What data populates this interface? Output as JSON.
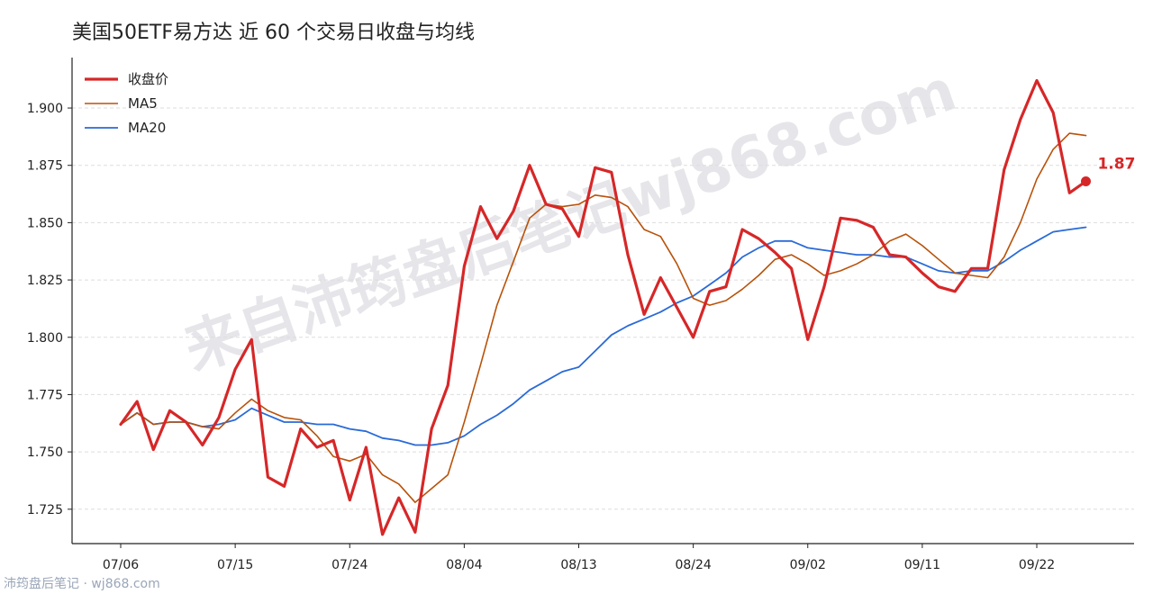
{
  "title": "美国50ETF易方达 近 60 个交易日收盘与均线",
  "footer": "沛筠盘后笔记 · wj868.com",
  "watermark": "来自沛筠盘后笔记wj868.com",
  "colors": {
    "close": "#d62728",
    "ma5": "#b8520a",
    "ma20": "#2a6ad8",
    "grid": "#dddddd",
    "axis": "#222222"
  },
  "chart_data": {
    "type": "line",
    "x_tick_labels": [
      "07/06",
      "07/15",
      "07/24",
      "08/04",
      "08/13",
      "08/24",
      "09/02",
      "09/11",
      "09/22"
    ],
    "x_tick_indices": [
      0,
      7,
      14,
      21,
      28,
      35,
      42,
      49,
      56
    ],
    "ylim": [
      1.71,
      1.922
    ],
    "y_ticks": [
      1.725,
      1.75,
      1.775,
      1.8,
      1.825,
      1.85,
      1.875,
      1.9
    ],
    "y_tick_labels": [
      "1.725",
      "1.750",
      "1.775",
      "1.800",
      "1.825",
      "1.850",
      "1.875",
      "1.900"
    ],
    "grid": "horizontal dashed",
    "legend_position": "top-left",
    "end_label": "1.87",
    "series": [
      {
        "name": "收盘价",
        "key": "close",
        "values": [
          1.762,
          1.772,
          1.751,
          1.768,
          1.763,
          1.753,
          1.765,
          1.786,
          1.799,
          1.739,
          1.735,
          1.76,
          1.752,
          1.755,
          1.729,
          1.752,
          1.714,
          1.73,
          1.715,
          1.76,
          1.779,
          1.831,
          1.857,
          1.843,
          1.855,
          1.875,
          1.858,
          1.856,
          1.844,
          1.874,
          1.872,
          1.836,
          1.81,
          1.826,
          1.813,
          1.8,
          1.82,
          1.822,
          1.847,
          1.843,
          1.837,
          1.83,
          1.799,
          1.822,
          1.852,
          1.851,
          1.848,
          1.836,
          1.835,
          1.828,
          1.822,
          1.82,
          1.83,
          1.83,
          1.873,
          1.895,
          1.912,
          1.898,
          1.863,
          1.868
        ]
      },
      {
        "name": "MA5",
        "key": "ma5",
        "values": [
          1.762,
          1.767,
          1.762,
          1.763,
          1.763,
          1.761,
          1.76,
          1.767,
          1.773,
          1.768,
          1.765,
          1.764,
          1.757,
          1.748,
          1.746,
          1.749,
          1.74,
          1.736,
          1.728,
          1.734,
          1.74,
          1.763,
          1.788,
          1.814,
          1.833,
          1.852,
          1.858,
          1.857,
          1.858,
          1.862,
          1.861,
          1.857,
          1.847,
          1.844,
          1.832,
          1.817,
          1.814,
          1.816,
          1.821,
          1.827,
          1.834,
          1.836,
          1.832,
          1.827,
          1.829,
          1.832,
          1.836,
          1.842,
          1.845,
          1.84,
          1.834,
          1.828,
          1.827,
          1.826,
          1.835,
          1.85,
          1.869,
          1.882,
          1.889,
          1.888
        ]
      },
      {
        "name": "MA20",
        "key": "ma20",
        "values": [
          1.762,
          1.767,
          1.762,
          1.763,
          1.763,
          1.761,
          1.762,
          1.764,
          1.769,
          1.766,
          1.763,
          1.763,
          1.762,
          1.762,
          1.76,
          1.759,
          1.756,
          1.755,
          1.753,
          1.753,
          1.754,
          1.757,
          1.762,
          1.766,
          1.771,
          1.777,
          1.781,
          1.785,
          1.787,
          1.794,
          1.801,
          1.805,
          1.808,
          1.811,
          1.815,
          1.818,
          1.823,
          1.828,
          1.835,
          1.839,
          1.842,
          1.842,
          1.839,
          1.838,
          1.837,
          1.836,
          1.836,
          1.835,
          1.835,
          1.832,
          1.829,
          1.828,
          1.829,
          1.829,
          1.833,
          1.838,
          1.842,
          1.846,
          1.847,
          1.848
        ]
      }
    ]
  }
}
